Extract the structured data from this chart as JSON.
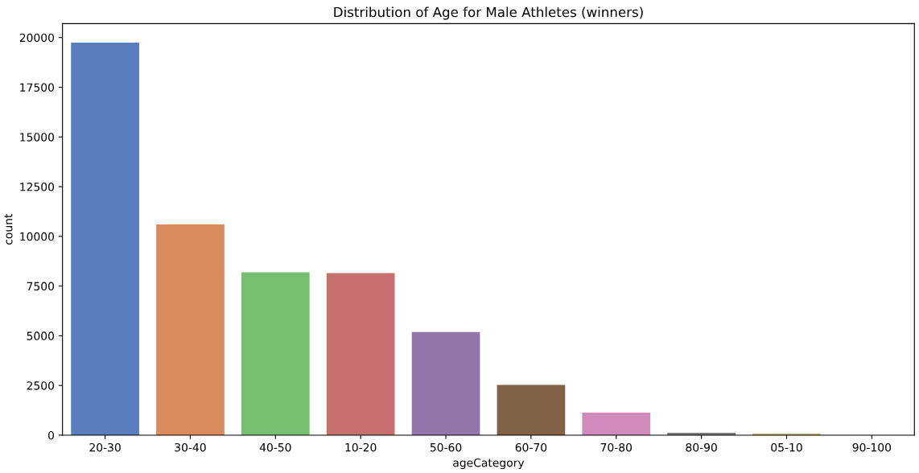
{
  "chart_data": {
    "type": "bar",
    "title": "Distribution of Age for Male Athletes (winners)",
    "xlabel": "ageCategory",
    "ylabel": "count",
    "categories": [
      "20-30",
      "30-40",
      "40-50",
      "10-20",
      "50-60",
      "60-70",
      "70-80",
      "80-90",
      "05-10",
      "90-100"
    ],
    "values": [
      19740,
      10600,
      8190,
      8150,
      5190,
      2530,
      1130,
      120,
      80,
      null
    ],
    "colors": [
      "#597dbf",
      "#d98b5e",
      "#76bf71",
      "#c76e6e",
      "#9475ab",
      "#826246",
      "#d08abb",
      "#797979",
      "#c7b475",
      "#8ec1d6"
    ],
    "ylim": [
      0,
      20700
    ],
    "yticks": [
      0,
      2500,
      5000,
      7500,
      10000,
      12500,
      15000,
      17500,
      20000
    ],
    "grid": false,
    "legend": false
  }
}
